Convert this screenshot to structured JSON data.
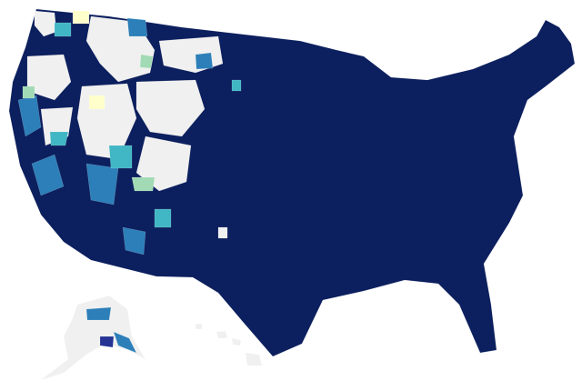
{
  "map": {
    "type": "choropleth",
    "colors": [
      "#0c1f5e",
      "#253494",
      "#2c7fb8",
      "#41b6c4",
      "#a1dab4",
      "#ffffcc",
      "#f0f0f0"
    ]
  }
}
